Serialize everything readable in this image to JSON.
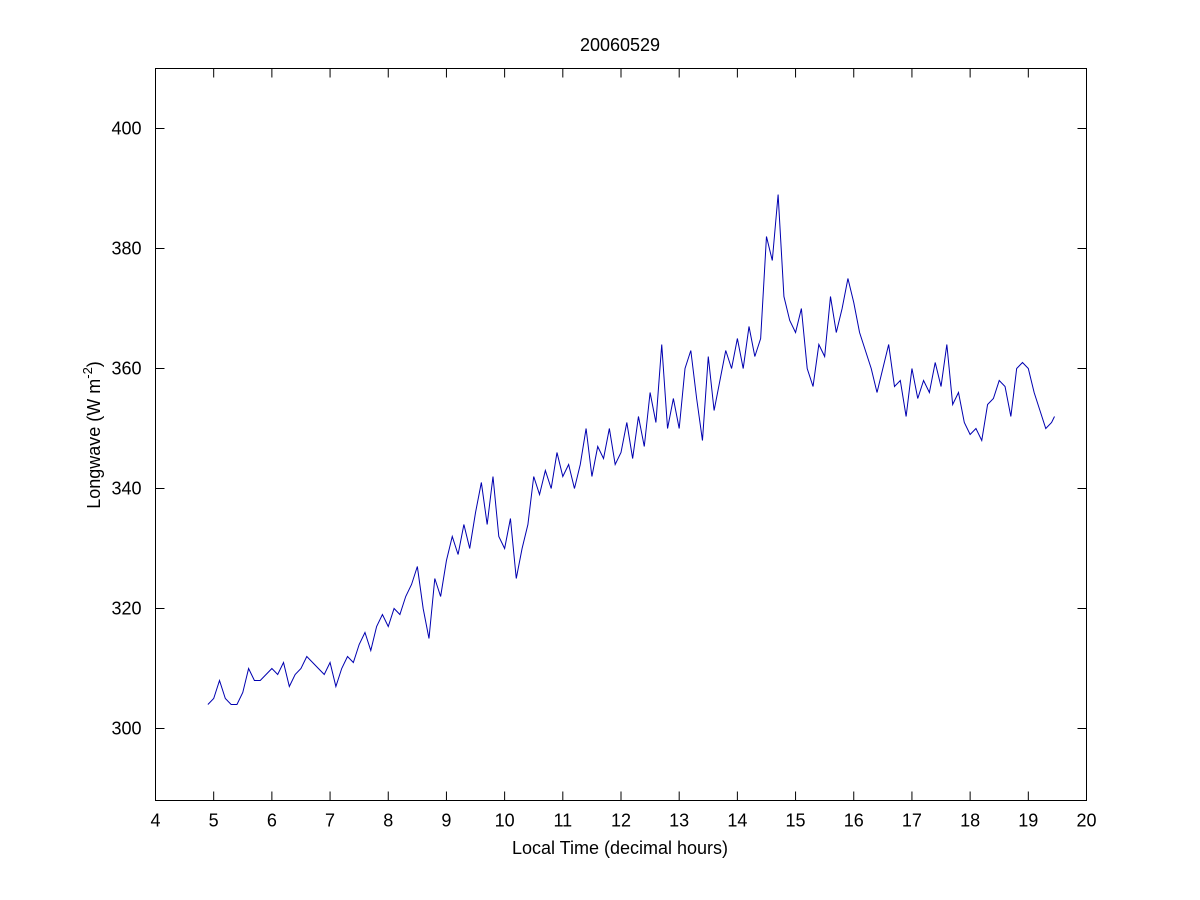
{
  "chart_data": {
    "type": "line",
    "title": "20060529",
    "xlabel": "Local Time (decimal hours)",
    "ylabel": "Longwave (W m",
    "ylabel_superscript": "-2",
    "ylabel_end": ")",
    "xlim": [
      4,
      20
    ],
    "xticks": [
      4,
      5,
      6,
      7,
      8,
      9,
      10,
      11,
      12,
      13,
      14,
      15,
      16,
      17,
      18,
      19,
      20
    ],
    "ylim": [
      288,
      410
    ],
    "yticks": [
      300,
      320,
      340,
      360,
      380,
      400
    ],
    "grid": false,
    "series": [
      {
        "color": "#0000b0",
        "x": [
          4.9,
          5.0,
          5.1,
          5.2,
          5.3,
          5.4,
          5.5,
          5.6,
          5.7,
          5.8,
          5.9,
          6.0,
          6.1,
          6.2,
          6.3,
          6.4,
          6.5,
          6.6,
          6.7,
          6.8,
          6.9,
          7.0,
          7.1,
          7.2,
          7.3,
          7.4,
          7.5,
          7.6,
          7.7,
          7.8,
          7.9,
          8.0,
          8.1,
          8.2,
          8.3,
          8.4,
          8.5,
          8.6,
          8.7,
          8.8,
          8.9,
          9.0,
          9.1,
          9.2,
          9.3,
          9.4,
          9.5,
          9.6,
          9.7,
          9.8,
          9.9,
          10.0,
          10.1,
          10.2,
          10.3,
          10.4,
          10.5,
          10.6,
          10.7,
          10.8,
          10.9,
          11.0,
          11.1,
          11.2,
          11.3,
          11.4,
          11.5,
          11.6,
          11.7,
          11.8,
          11.9,
          12.0,
          12.1,
          12.2,
          12.3,
          12.4,
          12.5,
          12.6,
          12.7,
          12.8,
          12.9,
          13.0,
          13.1,
          13.2,
          13.3,
          13.4,
          13.5,
          13.6,
          13.7,
          13.8,
          13.9,
          14.0,
          14.1,
          14.2,
          14.3,
          14.4,
          14.5,
          14.6,
          14.7,
          14.8,
          14.9,
          15.0,
          15.1,
          15.2,
          15.3,
          15.4,
          15.5,
          15.6,
          15.7,
          15.8,
          15.9,
          16.0,
          16.1,
          16.2,
          16.3,
          16.4,
          16.5,
          16.6,
          16.7,
          16.8,
          16.9,
          17.0,
          17.1,
          17.2,
          17.3,
          17.4,
          17.5,
          17.6,
          17.7,
          17.8,
          17.9,
          18.0,
          18.1,
          18.2,
          18.3,
          18.4,
          18.5,
          18.6,
          18.7,
          18.8,
          18.9,
          19.0,
          19.1,
          19.2,
          19.3,
          19.4,
          19.45
        ],
        "values": [
          304,
          305,
          308,
          305,
          304,
          304,
          306,
          310,
          308,
          308,
          309,
          310,
          309,
          311,
          307,
          309,
          310,
          312,
          311,
          310,
          309,
          311,
          307,
          310,
          312,
          311,
          314,
          316,
          313,
          317,
          319,
          317,
          320,
          319,
          322,
          324,
          327,
          320,
          315,
          325,
          322,
          328,
          332,
          329,
          334,
          330,
          336,
          341,
          334,
          342,
          332,
          330,
          335,
          325,
          330,
          334,
          342,
          339,
          343,
          340,
          346,
          342,
          344,
          340,
          344,
          350,
          342,
          347,
          345,
          350,
          344,
          346,
          351,
          345,
          352,
          347,
          356,
          351,
          364,
          350,
          355,
          350,
          360,
          363,
          355,
          348,
          362,
          353,
          358,
          363,
          360,
          365,
          360,
          367,
          362,
          365,
          382,
          378,
          389,
          372,
          368,
          366,
          370,
          360,
          357,
          364,
          362,
          372,
          366,
          370,
          375,
          371,
          366,
          363,
          360,
          356,
          360,
          364,
          357,
          358,
          352,
          360,
          355,
          358,
          356,
          361,
          357,
          364,
          354,
          356,
          351,
          349,
          350,
          348,
          354,
          355,
          358,
          357,
          352,
          360,
          361,
          360,
          356,
          353,
          350,
          351,
          352
        ]
      }
    ]
  }
}
